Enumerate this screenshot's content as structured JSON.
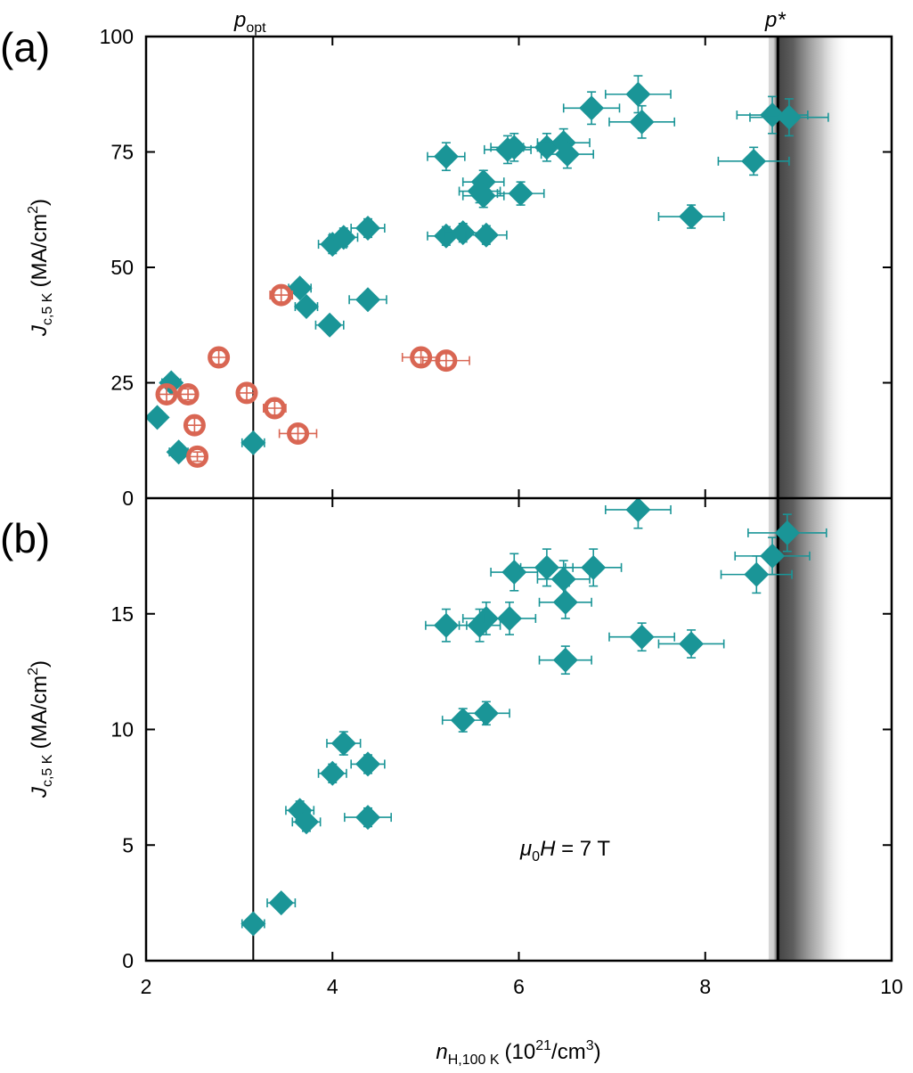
{
  "chart_data": [
    {
      "panel": "(a)",
      "type": "scatter",
      "xlabel": {
        "main": "n",
        "sub": "H,100 K",
        "unit": "(10",
        "unit_exp": "21",
        "unit_end": "/cm",
        "unit_end_exp": "3",
        "unit_close": ")"
      },
      "ylabel": {
        "main": "J",
        "sub": "c,5 K",
        "unit": "(MA/cm",
        "unit_exp": "2",
        "unit_close": ")"
      },
      "xlim": [
        2,
        10
      ],
      "ylim": [
        0,
        100
      ],
      "xticks": [
        "2",
        "4",
        "6",
        "8",
        "10"
      ],
      "yticks": [
        "0",
        "25",
        "50",
        "75",
        "100"
      ],
      "vlines": [
        {
          "label": "p",
          "label_sub": "opt",
          "x": 3.15
        },
        {
          "label": "p*",
          "x": 8.78,
          "band": [
            8.68,
            9.55
          ]
        }
      ],
      "colors": {
        "diamond": "#1a9597",
        "circle": "#d96653"
      },
      "series": [
        {
          "marker": "diamond",
          "points": [
            {
              "x": 2.12,
              "y": 17.5,
              "xerr": 0.08,
              "yerr": 1.2
            },
            {
              "x": 2.27,
              "y": 25.0,
              "xerr": 0.1,
              "yerr": 1.2
            },
            {
              "x": 2.35,
              "y": 10.0,
              "xerr": 0.1,
              "yerr": 1.0
            },
            {
              "x": 3.15,
              "y": 12.0,
              "xerr": 0.12,
              "yerr": 1.0
            },
            {
              "x": 3.65,
              "y": 45.5,
              "xerr": 0.12,
              "yerr": 1.5
            },
            {
              "x": 3.72,
              "y": 41.5,
              "xerr": 0.12,
              "yerr": 1.5
            },
            {
              "x": 3.97,
              "y": 37.5,
              "xerr": 0.15,
              "yerr": 1.5
            },
            {
              "x": 4.0,
              "y": 55.0,
              "xerr": 0.15,
              "yerr": 2.0
            },
            {
              "x": 4.12,
              "y": 56.5,
              "xerr": 0.15,
              "yerr": 2.0
            },
            {
              "x": 4.38,
              "y": 58.5,
              "xerr": 0.18,
              "yerr": 2.0
            },
            {
              "x": 4.38,
              "y": 43.0,
              "xerr": 0.2,
              "yerr": 1.5
            },
            {
              "x": 5.22,
              "y": 74.0,
              "xerr": 0.2,
              "yerr": 3.0
            },
            {
              "x": 5.22,
              "y": 56.8,
              "xerr": 0.2,
              "yerr": 2.0
            },
            {
              "x": 5.4,
              "y": 57.5,
              "xerr": 0.2,
              "yerr": 2.0
            },
            {
              "x": 5.58,
              "y": 66.5,
              "xerr": 0.22,
              "yerr": 2.5
            },
            {
              "x": 5.62,
              "y": 68.5,
              "xerr": 0.22,
              "yerr": 2.5
            },
            {
              "x": 5.62,
              "y": 65.5,
              "xerr": 0.22,
              "yerr": 2.5
            },
            {
              "x": 5.65,
              "y": 57.0,
              "xerr": 0.22,
              "yerr": 2.0
            },
            {
              "x": 5.88,
              "y": 75.5,
              "xerr": 0.25,
              "yerr": 3.0
            },
            {
              "x": 5.95,
              "y": 76.0,
              "xerr": 0.25,
              "yerr": 3.0
            },
            {
              "x": 6.02,
              "y": 66.0,
              "xerr": 0.25,
              "yerr": 2.5
            },
            {
              "x": 6.3,
              "y": 76.0,
              "xerr": 0.25,
              "yerr": 3.0
            },
            {
              "x": 6.48,
              "y": 77.0,
              "xerr": 0.28,
              "yerr": 3.0
            },
            {
              "x": 6.52,
              "y": 74.5,
              "xerr": 0.28,
              "yerr": 3.0
            },
            {
              "x": 6.78,
              "y": 84.5,
              "xerr": 0.3,
              "yerr": 3.5
            },
            {
              "x": 7.28,
              "y": 87.5,
              "xerr": 0.35,
              "yerr": 4.0
            },
            {
              "x": 7.32,
              "y": 81.5,
              "xerr": 0.35,
              "yerr": 3.5
            },
            {
              "x": 7.85,
              "y": 61.0,
              "xerr": 0.35,
              "yerr": 2.5
            },
            {
              "x": 8.52,
              "y": 73.0,
              "xerr": 0.38,
              "yerr": 3.0
            },
            {
              "x": 8.72,
              "y": 83.0,
              "xerr": 0.38,
              "yerr": 4.0
            },
            {
              "x": 8.9,
              "y": 82.5,
              "xerr": 0.42,
              "yerr": 4.0
            }
          ]
        },
        {
          "marker": "circle",
          "points": [
            {
              "x": 2.22,
              "y": 22.5,
              "xerr": 0.08,
              "yerr": 1.5
            },
            {
              "x": 2.45,
              "y": 22.5,
              "xerr": 0.08,
              "yerr": 1.2
            },
            {
              "x": 2.52,
              "y": 15.8,
              "xerr": 0.08,
              "yerr": 1.5
            },
            {
              "x": 2.55,
              "y": 9.0,
              "xerr": 0.08,
              "yerr": 1.0
            },
            {
              "x": 2.78,
              "y": 30.5,
              "xerr": 0.08,
              "yerr": 1.5
            },
            {
              "x": 3.08,
              "y": 22.8,
              "xerr": 0.1,
              "yerr": 1.5
            },
            {
              "x": 3.38,
              "y": 19.5,
              "xerr": 0.12,
              "yerr": 1.5
            },
            {
              "x": 3.45,
              "y": 44.0,
              "xerr": 0.12,
              "yerr": 1.5
            },
            {
              "x": 3.63,
              "y": 14.0,
              "xerr": 0.2,
              "yerr": 1.5
            },
            {
              "x": 4.95,
              "y": 30.5,
              "xerr": 0.2,
              "yerr": 1.5
            },
            {
              "x": 5.22,
              "y": 29.8,
              "xerr": 0.25,
              "yerr": 1.5
            }
          ]
        }
      ]
    },
    {
      "panel": "(b)",
      "type": "scatter",
      "annotation": {
        "mu": "μ",
        "sub": "0",
        "rest": "H",
        "value": " = 7 T"
      },
      "xlabel": {
        "main": "n",
        "sub": "H,100 K",
        "unit": "(10",
        "unit_exp": "21",
        "unit_end": "/cm",
        "unit_end_exp": "3",
        "unit_close": ")"
      },
      "ylabel": {
        "main": "J",
        "sub": "c,5 K",
        "unit": "(MA/cm",
        "unit_exp": "2",
        "unit_close": ")"
      },
      "xlim": [
        2,
        10
      ],
      "ylim": [
        0,
        20
      ],
      "xticks": [
        "2",
        "4",
        "6",
        "8",
        "10"
      ],
      "yticks": [
        "0",
        "5",
        "10",
        "15"
      ],
      "series": [
        {
          "marker": "diamond",
          "points": [
            {
              "x": 3.15,
              "y": 1.6,
              "xerr": 0.12,
              "yerr": 0.3
            },
            {
              "x": 3.45,
              "y": 2.5,
              "xerr": 0.15,
              "yerr": 0.3
            },
            {
              "x": 3.65,
              "y": 6.5,
              "xerr": 0.15,
              "yerr": 0.4
            },
            {
              "x": 3.72,
              "y": 6.0,
              "xerr": 0.15,
              "yerr": 0.4
            },
            {
              "x": 4.0,
              "y": 8.1,
              "xerr": 0.15,
              "yerr": 0.4
            },
            {
              "x": 4.12,
              "y": 9.4,
              "xerr": 0.18,
              "yerr": 0.5
            },
            {
              "x": 4.38,
              "y": 8.5,
              "xerr": 0.18,
              "yerr": 0.4
            },
            {
              "x": 4.38,
              "y": 6.2,
              "xerr": 0.25,
              "yerr": 0.4
            },
            {
              "x": 5.22,
              "y": 14.5,
              "xerr": 0.22,
              "yerr": 0.7
            },
            {
              "x": 5.4,
              "y": 10.4,
              "xerr": 0.22,
              "yerr": 0.5
            },
            {
              "x": 5.58,
              "y": 14.5,
              "xerr": 0.22,
              "yerr": 0.7
            },
            {
              "x": 5.65,
              "y": 10.7,
              "xerr": 0.25,
              "yerr": 0.5
            },
            {
              "x": 5.65,
              "y": 14.8,
              "xerr": 0.25,
              "yerr": 0.7
            },
            {
              "x": 5.9,
              "y": 14.8,
              "xerr": 0.28,
              "yerr": 0.7
            },
            {
              "x": 5.95,
              "y": 16.8,
              "xerr": 0.25,
              "yerr": 0.8
            },
            {
              "x": 6.3,
              "y": 17.0,
              "xerr": 0.28,
              "yerr": 0.8
            },
            {
              "x": 6.48,
              "y": 16.5,
              "xerr": 0.28,
              "yerr": 0.8
            },
            {
              "x": 6.5,
              "y": 15.5,
              "xerr": 0.28,
              "yerr": 0.7
            },
            {
              "x": 6.5,
              "y": 13.0,
              "xerr": 0.28,
              "yerr": 0.6
            },
            {
              "x": 6.8,
              "y": 17.0,
              "xerr": 0.3,
              "yerr": 0.8
            },
            {
              "x": 7.28,
              "y": 19.5,
              "xerr": 0.35,
              "yerr": 0.8
            },
            {
              "x": 7.32,
              "y": 14.0,
              "xerr": 0.35,
              "yerr": 0.6
            },
            {
              "x": 7.85,
              "y": 13.7,
              "xerr": 0.35,
              "yerr": 0.6
            },
            {
              "x": 8.55,
              "y": 16.7,
              "xerr": 0.38,
              "yerr": 0.8
            },
            {
              "x": 8.72,
              "y": 17.5,
              "xerr": 0.4,
              "yerr": 0.8
            },
            {
              "x": 8.88,
              "y": 18.5,
              "xerr": 0.42,
              "yerr": 0.8
            }
          ]
        }
      ]
    }
  ]
}
